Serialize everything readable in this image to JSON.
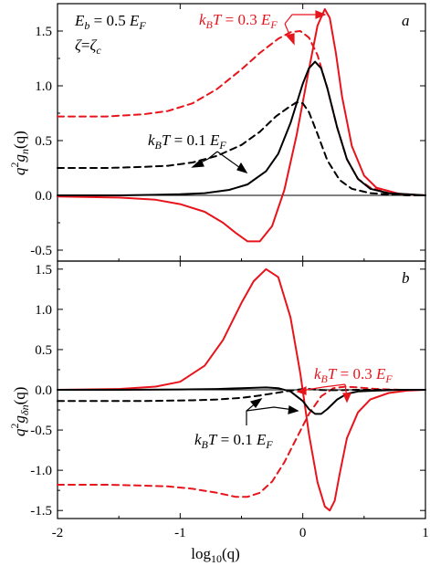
{
  "chart_data": [
    {
      "type": "line",
      "panel_label": "a",
      "ylabel": {
        "base": "q",
        "sup": "2",
        "mid": "g",
        "sub": "n",
        "tail": "(q)"
      },
      "xlim": [
        -2,
        1
      ],
      "ylim": [
        -0.6,
        1.75
      ],
      "yticks": [
        -0.5,
        0.0,
        0.5,
        1.0,
        1.5
      ],
      "ytick_labels": [
        "-0.5",
        "0.0",
        "0.5",
        "1.0",
        "1.5"
      ],
      "params": [
        {
          "lhs": "E",
          "lhs_sub": "b",
          "op": " = 0.5 ",
          "rhs": "E",
          "rhs_sub": "F"
        },
        {
          "lhs": "ζ",
          "lhs_sub": "",
          "op": "=",
          "rhs": "ζ",
          "rhs_sub": "c"
        }
      ],
      "annotations": [
        {
          "name": "kT-0.3",
          "k": "k",
          "k_sub": "B",
          "T": "T",
          "val": " = 0.3 ",
          "E": "E",
          "E_sub": "F",
          "color": "#e8141c"
        },
        {
          "name": "kT-0.1",
          "k": "k",
          "k_sub": "B",
          "T": "T",
          "val": " = 0.1 ",
          "E": "E",
          "E_sub": "F",
          "color": "#000000"
        }
      ],
      "series": [
        {
          "color": "#e8141c",
          "dash": false,
          "x": [
            -2,
            -1.5,
            -1.2,
            -1.0,
            -0.8,
            -0.65,
            -0.55,
            -0.45,
            -0.35,
            -0.25,
            -0.15,
            -0.05,
            0.05,
            0.12,
            0.18,
            0.22,
            0.27,
            0.32,
            0.4,
            0.5,
            0.6,
            0.8,
            1.0
          ],
          "y": [
            -0.01,
            -0.02,
            -0.04,
            -0.08,
            -0.15,
            -0.25,
            -0.34,
            -0.42,
            -0.42,
            -0.28,
            0.05,
            0.55,
            1.15,
            1.55,
            1.7,
            1.62,
            1.3,
            0.9,
            0.45,
            0.18,
            0.07,
            0.01,
            0.0
          ]
        },
        {
          "color": "#e8141c",
          "dash": true,
          "x": [
            -2,
            -1.6,
            -1.3,
            -1.1,
            -0.9,
            -0.7,
            -0.5,
            -0.35,
            -0.2,
            -0.1,
            -0.02,
            0.05,
            0.12,
            0.2,
            0.28,
            0.36,
            0.45,
            0.55,
            0.7,
            0.85,
            1.0
          ],
          "y": [
            0.72,
            0.72,
            0.74,
            0.77,
            0.84,
            0.97,
            1.15,
            1.3,
            1.43,
            1.49,
            1.5,
            1.44,
            1.28,
            0.98,
            0.62,
            0.33,
            0.15,
            0.07,
            0.02,
            0.01,
            0.0
          ]
        },
        {
          "color": "#000000",
          "dash": false,
          "x": [
            -2,
            -1.5,
            -1.2,
            -1.0,
            -0.8,
            -0.6,
            -0.45,
            -0.3,
            -0.2,
            -0.1,
            0.0,
            0.05,
            0.1,
            0.15,
            0.2,
            0.28,
            0.36,
            0.45,
            0.55,
            0.7,
            0.85,
            1.0
          ],
          "y": [
            0.0,
            0.0,
            0.005,
            0.01,
            0.02,
            0.05,
            0.1,
            0.22,
            0.38,
            0.66,
            1.02,
            1.16,
            1.22,
            1.16,
            0.98,
            0.62,
            0.33,
            0.15,
            0.06,
            0.02,
            0.01,
            0.0
          ]
        },
        {
          "color": "#000000",
          "dash": true,
          "x": [
            -2,
            -1.6,
            -1.3,
            -1.1,
            -0.9,
            -0.7,
            -0.5,
            -0.35,
            -0.22,
            -0.12,
            -0.05,
            0.0,
            0.05,
            0.12,
            0.2,
            0.3,
            0.4,
            0.55,
            0.7,
            0.85,
            1.0
          ],
          "y": [
            0.25,
            0.25,
            0.26,
            0.27,
            0.3,
            0.36,
            0.46,
            0.58,
            0.72,
            0.8,
            0.85,
            0.84,
            0.76,
            0.56,
            0.32,
            0.14,
            0.06,
            0.02,
            0.01,
            0.0,
            0.0
          ]
        }
      ]
    },
    {
      "type": "line",
      "panel_label": "b",
      "ylabel": {
        "base": "q",
        "sup": "2",
        "mid": "g",
        "sub": "δn",
        "tail": "(q)"
      },
      "xlabel": {
        "pre": "log",
        "sub": "10",
        "post": "(q)"
      },
      "xlim": [
        -2,
        1
      ],
      "ylim": [
        -1.6,
        1.6
      ],
      "xticks": [
        -2,
        -1,
        0,
        1
      ],
      "xtick_labels": [
        "-2",
        "-1",
        "0",
        "1"
      ],
      "yticks": [
        -1.5,
        -1.0,
        -0.5,
        0.0,
        0.5,
        1.0,
        1.5
      ],
      "ytick_labels": [
        "-1.5",
        "-1.0",
        "-0.5",
        "0.0",
        "0.5",
        "1.0",
        "1.5"
      ],
      "annotations": [
        {
          "name": "kT-0.3",
          "k": "k",
          "k_sub": "B",
          "T": "T",
          "val": " = 0.3 ",
          "E": "E",
          "E_sub": "F",
          "color": "#e8141c"
        },
        {
          "name": "kT-0.1",
          "k": "k",
          "k_sub": "B",
          "T": "T",
          "val": " = 0.1 ",
          "E": "E",
          "E_sub": "F",
          "color": "#000000"
        }
      ],
      "series": [
        {
          "color": "#e8141c",
          "dash": false,
          "x": [
            -2,
            -1.5,
            -1.2,
            -1.0,
            -0.8,
            -0.65,
            -0.5,
            -0.4,
            -0.3,
            -0.2,
            -0.1,
            -0.02,
            0.05,
            0.12,
            0.18,
            0.22,
            0.26,
            0.3,
            0.36,
            0.45,
            0.55,
            0.7,
            0.85,
            1.0
          ],
          "y": [
            0.0,
            0.01,
            0.04,
            0.1,
            0.3,
            0.62,
            1.08,
            1.35,
            1.5,
            1.4,
            0.9,
            0.2,
            -0.55,
            -1.15,
            -1.45,
            -1.5,
            -1.38,
            -1.05,
            -0.6,
            -0.28,
            -0.12,
            -0.04,
            -0.01,
            0.0
          ]
        },
        {
          "color": "#e8141c",
          "dash": true,
          "x": [
            -2,
            -1.6,
            -1.3,
            -1.1,
            -0.9,
            -0.7,
            -0.55,
            -0.45,
            -0.35,
            -0.25,
            -0.15,
            -0.05,
            0.05,
            0.15,
            0.25,
            0.35,
            0.45,
            0.6,
            0.8,
            1.0
          ],
          "y": [
            -1.18,
            -1.18,
            -1.19,
            -1.2,
            -1.23,
            -1.28,
            -1.33,
            -1.33,
            -1.28,
            -1.14,
            -0.9,
            -0.6,
            -0.3,
            -0.08,
            0.02,
            0.04,
            0.03,
            0.01,
            0.0,
            0.0
          ]
        },
        {
          "color": "#000000",
          "dash": false,
          "x": [
            -2,
            -1.5,
            -1.0,
            -0.7,
            -0.5,
            -0.3,
            -0.2,
            -0.1,
            0.0,
            0.05,
            0.1,
            0.15,
            0.2,
            0.28,
            0.36,
            0.45,
            0.6,
            0.8,
            1.0
          ],
          "y": [
            0.0,
            0.0,
            0.005,
            0.01,
            0.02,
            0.03,
            0.02,
            -0.02,
            -0.14,
            -0.24,
            -0.3,
            -0.3,
            -0.24,
            -0.12,
            -0.05,
            -0.02,
            -0.01,
            0.0,
            0.0
          ]
        },
        {
          "color": "#000000",
          "dash": true,
          "x": [
            -2,
            -1.6,
            -1.3,
            -1.1,
            -0.9,
            -0.7,
            -0.5,
            -0.35,
            -0.22,
            -0.12,
            -0.05,
            0.0,
            0.05,
            0.12,
            0.2,
            0.3,
            0.45,
            0.6,
            0.8,
            1.0
          ],
          "y": [
            -0.14,
            -0.14,
            -0.14,
            -0.135,
            -0.13,
            -0.12,
            -0.1,
            -0.07,
            -0.04,
            -0.015,
            0.0,
            0.01,
            0.01,
            0.0,
            -0.005,
            -0.005,
            0.0,
            0.0,
            0.0,
            0.0
          ]
        }
      ]
    }
  ]
}
